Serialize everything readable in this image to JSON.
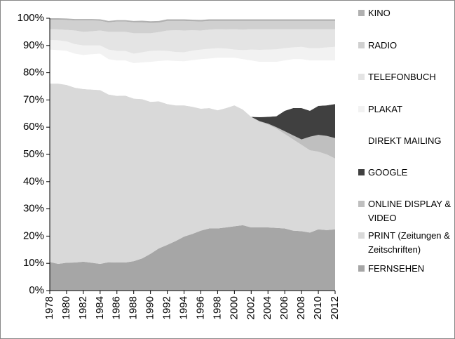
{
  "chart_data": {
    "type": "stacked-area",
    "x": [
      1978,
      1979,
      1980,
      1981,
      1982,
      1983,
      1984,
      1985,
      1986,
      1987,
      1988,
      1989,
      1990,
      1991,
      1992,
      1993,
      1994,
      1995,
      1996,
      1997,
      1998,
      1999,
      2000,
      2001,
      2002,
      2003,
      2004,
      2005,
      2006,
      2007,
      2008,
      2009,
      2010,
      2011,
      2012
    ],
    "xlim": [
      1978,
      2012
    ],
    "xticks": [
      1978,
      1980,
      1982,
      1984,
      1986,
      1988,
      1990,
      1992,
      1994,
      1996,
      1998,
      2000,
      2002,
      2004,
      2006,
      2008,
      2010,
      2012
    ],
    "ylim": [
      0,
      100
    ],
    "yticks": [
      {
        "value": 0,
        "label": "0%"
      },
      {
        "value": 10,
        "label": "10%"
      },
      {
        "value": 20,
        "label": "20%"
      },
      {
        "value": 30,
        "label": "30%"
      },
      {
        "value": 40,
        "label": "40%"
      },
      {
        "value": 50,
        "label": "50%"
      },
      {
        "value": 60,
        "label": "60%"
      },
      {
        "value": 70,
        "label": "70%"
      },
      {
        "value": 80,
        "label": "80%"
      },
      {
        "value": 90,
        "label": "90%"
      },
      {
        "value": 100,
        "label": "100%"
      }
    ],
    "legend": "right",
    "series": [
      {
        "name": "FERNSEHEN",
        "color": "#a6a6a6",
        "values": [
          10.5,
          9.8,
          10.2,
          10.3,
          10.6,
          10.2,
          9.8,
          10.4,
          10.3,
          10.3,
          10.8,
          11.8,
          13.5,
          15.5,
          16.8,
          18.2,
          19.8,
          20.8,
          22,
          22.8,
          22.8,
          23.2,
          23.6,
          24,
          23.2,
          23.2,
          23.2,
          23,
          22.8,
          22,
          21.8,
          21.3,
          22.5,
          22.2,
          22.5
        ]
      },
      {
        "name": "PRINT (Zeitungen & Zeitschriften)",
        "color": "#d9d9d9",
        "values": [
          65.5,
          66.2,
          65.3,
          64.2,
          63.4,
          63.6,
          63.8,
          61.6,
          61.2,
          61.3,
          59.7,
          58.5,
          55.8,
          54,
          51.7,
          49.8,
          48.2,
          46.7,
          44.8,
          44.2,
          43.4,
          43.8,
          44.4,
          42.5,
          40.6,
          38.8,
          37.8,
          36.5,
          34.7,
          33.5,
          31.7,
          30.2,
          28.5,
          27.8,
          26
        ]
      },
      {
        "name": "ONLINE DISPLAY & VIDEO",
        "color": "#bfbfbf",
        "values": [
          0,
          0,
          0,
          0,
          0,
          0,
          0,
          0,
          0,
          0,
          0,
          0,
          0,
          0,
          0,
          0,
          0,
          0,
          0,
          0,
          0,
          0,
          0,
          0,
          0,
          0.2,
          0.3,
          0.5,
          1,
          1.5,
          2,
          5,
          6.2,
          6.8,
          7.5
        ]
      },
      {
        "name": "GOOGLE",
        "color": "#404040",
        "values": [
          0,
          0,
          0,
          0,
          0,
          0,
          0,
          0,
          0,
          0,
          0,
          0,
          0,
          0,
          0,
          0,
          0,
          0,
          0,
          0,
          0,
          0,
          0,
          0,
          0,
          1.5,
          2.5,
          4,
          7.5,
          10,
          11.5,
          9.5,
          10.6,
          11.2,
          12.5
        ]
      },
      {
        "name": "DIREKT MAILING",
        "color": "#ffffff",
        "values": [
          12.5,
          12.3,
          12.5,
          12.5,
          12.5,
          13,
          13.4,
          13,
          13,
          12.9,
          13,
          13.5,
          14.7,
          14.8,
          16,
          16.3,
          16.2,
          17.1,
          18.2,
          18.2,
          19.3,
          18.5,
          17.5,
          18.5,
          20.7,
          20.3,
          20.2,
          20,
          18.5,
          18,
          18,
          18.5,
          16.7,
          16.5,
          16
        ]
      },
      {
        "name": "PLAKAT",
        "color": "#f2f2f2",
        "values": [
          3.5,
          3.6,
          3.5,
          3.5,
          3.5,
          3.2,
          3,
          3.5,
          3.5,
          3.5,
          3.5,
          3.7,
          4,
          3.8,
          3.5,
          3.3,
          3.3,
          3.5,
          3.5,
          3.6,
          3.5,
          3.4,
          3,
          3.3,
          4,
          4.4,
          4.5,
          4.6,
          4.5,
          4.3,
          4.5,
          4.5,
          4.5,
          4.8,
          5
        ]
      },
      {
        "name": "TELEFONBUCH",
        "color": "#e4e4e4",
        "values": [
          4,
          4,
          4.2,
          5,
          5,
          5.2,
          5.5,
          6.5,
          7,
          7,
          7.5,
          7,
          6.5,
          6.8,
          7.5,
          8,
          8,
          7.5,
          7,
          7,
          7,
          7,
          7.5,
          7.5,
          7.5,
          7.6,
          7.5,
          7.4,
          7,
          6.7,
          6.5,
          7,
          7,
          6.7,
          6.5
        ]
      },
      {
        "name": "RADIO",
        "color": "#d0d0d0",
        "values": [
          3.5,
          3.6,
          3.7,
          3.7,
          4.2,
          4,
          3.6,
          3.5,
          3.8,
          3.8,
          4,
          4,
          3.8,
          3.5,
          3.5,
          3.4,
          3.5,
          3.3,
          3.3,
          3.2,
          3,
          3.1,
          3,
          3.2,
          3,
          3,
          3,
          3,
          3,
          3,
          3,
          3,
          3,
          3,
          3
        ]
      },
      {
        "name": "KINO",
        "color": "#b0b0b0",
        "values": [
          0.5,
          0.5,
          0.5,
          0.5,
          0.5,
          0.5,
          0.5,
          0.5,
          0.5,
          0.5,
          0.5,
          0.6,
          0.6,
          0.6,
          0.6,
          0.6,
          0.6,
          0.6,
          0.6,
          0.6,
          0.6,
          0.6,
          0.6,
          0.6,
          0.6,
          0.6,
          0.6,
          0.6,
          0.6,
          0.6,
          0.6,
          0.6,
          0.6,
          0.6,
          0.6
        ]
      }
    ]
  }
}
